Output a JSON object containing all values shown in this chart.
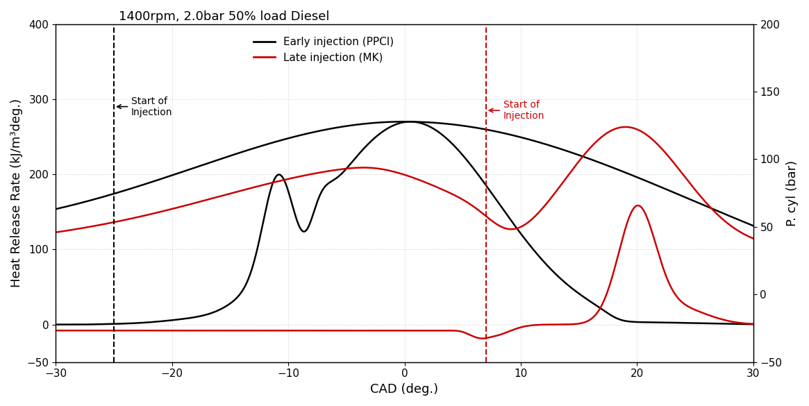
{
  "title": "1400rpm, 2.0bar 50% load Diesel",
  "xlabel": "CAD (deg.)",
  "ylabel_left": "Heat Release Rate (kJ/m³deg.)",
  "ylabel_right": "P. cyl (bar)",
  "xlim": [
    -30,
    30
  ],
  "ylim_left": [
    -50,
    400
  ],
  "ylim_right": [
    -50,
    200
  ],
  "yticks_left": [
    -50,
    0,
    100,
    200,
    300,
    400
  ],
  "yticks_right": [
    -50,
    0,
    50,
    100,
    150,
    200
  ],
  "xticks": [
    -30,
    -20,
    -10,
    0,
    10,
    20,
    30
  ],
  "early_injection_x": -25,
  "late_injection_x": 7,
  "early_color": "#000000",
  "late_color": "#cc0000",
  "legend_entries": [
    "Early injection (PPCI)",
    "Late injection (MK)"
  ],
  "annotation_early": "Start of\nInjection",
  "annotation_late": "Start of\nInjection",
  "background_color": "#ffffff",
  "grid_color": "#d0d0d0"
}
